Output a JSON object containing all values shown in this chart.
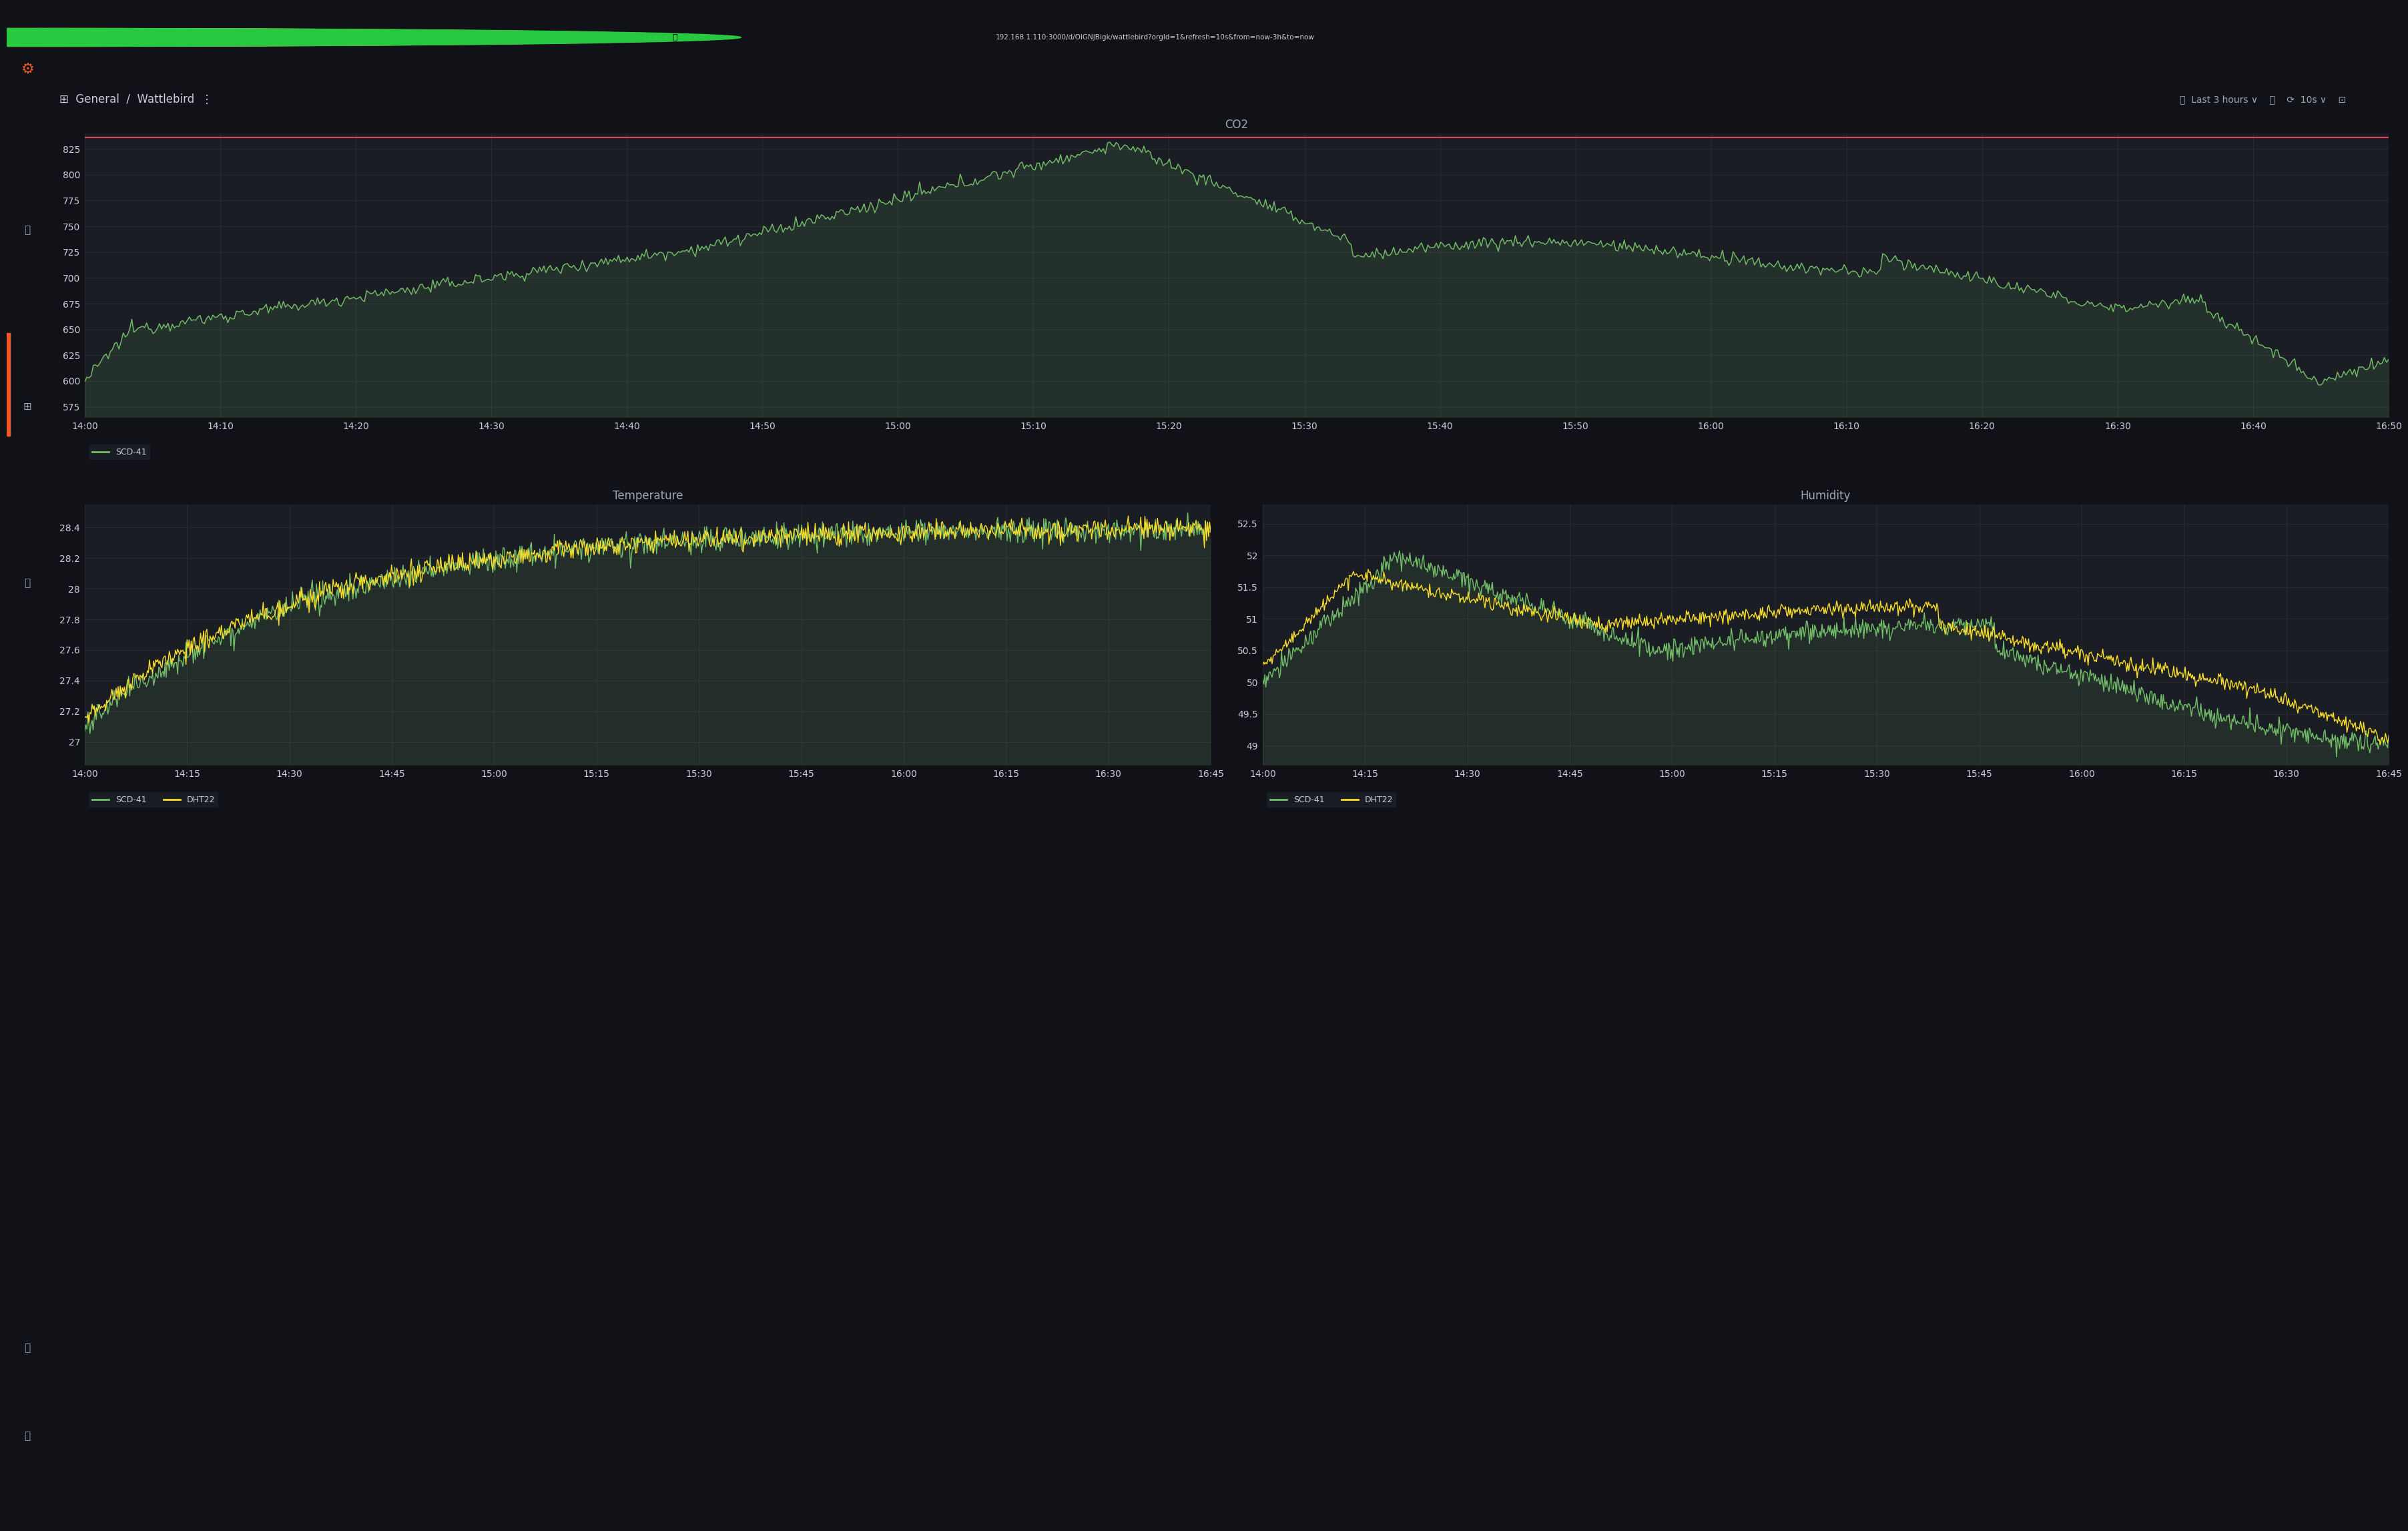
{
  "bg_color": "#111217",
  "panel_bg": "#1a1d23",
  "topbar_bg": "#000000",
  "sidebar_bg": "#161719",
  "grid_color": "#2c3035",
  "text_color": "#ccccdc",
  "dim_text": "#9fa7b3",
  "green_line": "#73bf69",
  "yellow_line": "#fade2a",
  "red_line": "#f2495c",
  "orange_accent": "#f05a28",
  "co2_title": "CO2",
  "co2_yticks": [
    575,
    600,
    625,
    650,
    675,
    700,
    725,
    750,
    775,
    800,
    825
  ],
  "co2_ylim": [
    565,
    840
  ],
  "co2_xticks": [
    "14:00",
    "14:10",
    "14:20",
    "14:30",
    "14:40",
    "14:50",
    "15:00",
    "15:10",
    "15:20",
    "15:30",
    "15:40",
    "15:50",
    "16:00",
    "16:10",
    "16:20",
    "16:30",
    "16:40",
    "16:50"
  ],
  "co2_legend": "SCD-41",
  "temp_title": "Temperature",
  "temp_yticks": [
    27,
    27.2,
    27.4,
    27.6,
    27.8,
    28,
    28.2,
    28.4
  ],
  "temp_ylim": [
    26.85,
    28.55
  ],
  "temp_xticks": [
    "14:00",
    "14:15",
    "14:30",
    "14:45",
    "15:00",
    "15:15",
    "15:30",
    "15:45",
    "16:00",
    "16:15",
    "16:30",
    "16:45"
  ],
  "temp_legend_scd": "SCD-41",
  "temp_legend_dht": "DHT22",
  "hum_title": "Humidity",
  "hum_yticks": [
    49,
    49.5,
    50,
    50.5,
    51,
    51.5,
    52,
    52.5
  ],
  "hum_ylim": [
    48.7,
    52.8
  ],
  "hum_xticks": [
    "14:00",
    "14:15",
    "14:30",
    "14:45",
    "15:00",
    "15:15",
    "15:30",
    "15:45",
    "16:00",
    "16:15",
    "16:30",
    "16:45"
  ],
  "hum_legend_scd": "SCD-41",
  "hum_legend_dht": "DHT22",
  "url_text": "192.168.1.110:3000/d/OIGNJBigk/wattlebird?orgId=1&refresh=10s&from=now-3h&to=now",
  "time_range": "Last 3 hours",
  "refresh": "10s"
}
